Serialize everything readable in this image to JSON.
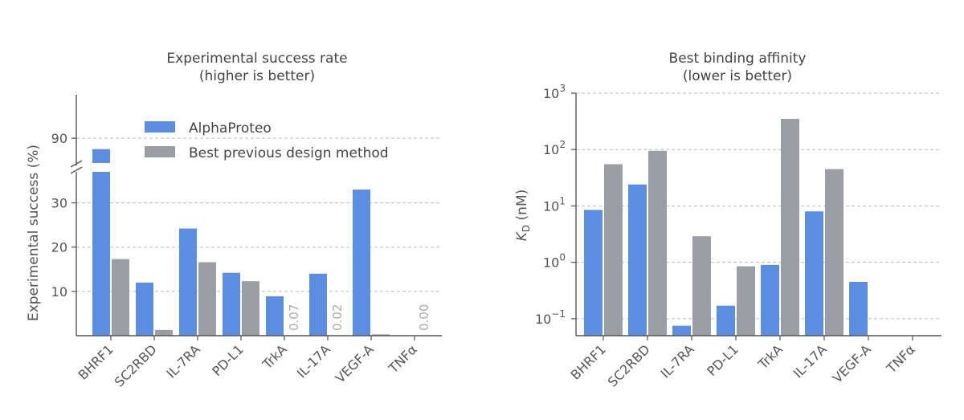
{
  "colors": {
    "alphaproteo": "#5b8de0",
    "previous": "#9a9ea4"
  },
  "chart_data": [
    {
      "type": "bar",
      "title": "Experimental success rate",
      "subtitle": "(higher is better)",
      "xlabel": "",
      "ylabel": "Experimental success (%)",
      "categories": [
        "BHRF1",
        "SC2RBD",
        "IL-7RA",
        "PD-L1",
        "TrkA",
        "IL-17A",
        "VEGF-A",
        "TNFα"
      ],
      "series": [
        {
          "name": "AlphaProteo",
          "values": [
            88.0,
            12.0,
            24.2,
            14.2,
            8.9,
            14.0,
            33.0,
            0.0
          ]
        },
        {
          "name": "Best previous design method",
          "values": [
            17.3,
            1.3,
            16.6,
            12.3,
            0.07,
            0.02,
            0.3,
            0.0
          ]
        }
      ],
      "annotations": [
        {
          "category": "TrkA",
          "text": "0.07"
        },
        {
          "category": "IL-17A",
          "text": "0.02"
        },
        {
          "category": "TNFα",
          "text": "0.00"
        }
      ],
      "yticks": [
        "10",
        "20",
        "30",
        "90"
      ],
      "ylim_lower": [
        0,
        37
      ],
      "ylim_upper": [
        85,
        98
      ],
      "axis_break": true,
      "grid": "horizontal dashed",
      "legend_placement": "top-right"
    },
    {
      "type": "bar",
      "title": "Best binding affinity",
      "subtitle": "(lower is better)",
      "xlabel": "",
      "ylabel": "K_D (nM)",
      "ylabel_base": "K",
      "ylabel_sub": "D",
      "ylabel_unit": " (nM)",
      "yscale": "log",
      "ylim": [
        0.05,
        1000
      ],
      "ytick_bases": [
        "10",
        "10",
        "10",
        "10",
        "10"
      ],
      "ytick_exps": [
        "−1",
        "0",
        "1",
        "2",
        "3"
      ],
      "categories": [
        "BHRF1",
        "SC2RBD",
        "IL-7RA",
        "PD-L1",
        "TrkA",
        "IL-17A",
        "VEGF-A",
        "TNFα"
      ],
      "series": [
        {
          "values": [
            8.5,
            24,
            0.075,
            0.17,
            0.9,
            8.0,
            0.45,
            null
          ]
        },
        {
          "values": [
            55,
            95,
            2.9,
            0.85,
            350,
            45,
            null,
            null
          ]
        }
      ],
      "grid": "horizontal dashed"
    }
  ]
}
